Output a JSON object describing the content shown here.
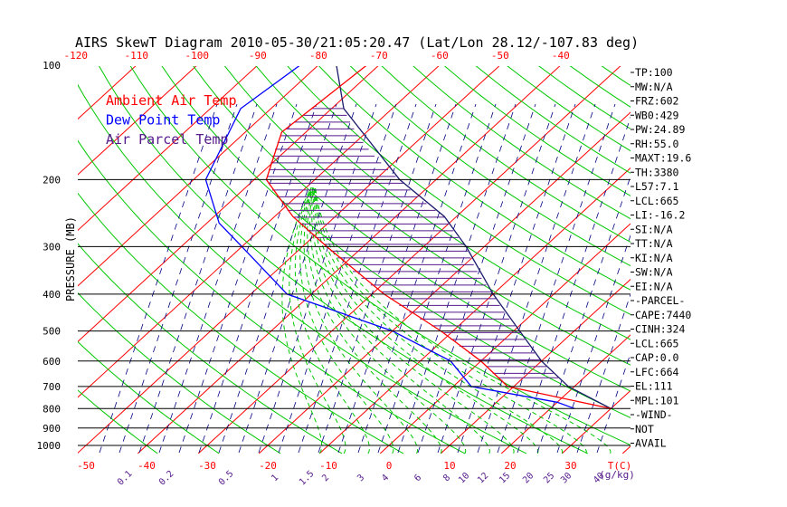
{
  "chart_data": {
    "type": "skewt",
    "title": "AIRS SkewT Diagram 2010-05-30/21:05:20.47 (Lat/Lon 28.12/-107.83 deg)",
    "ylabel": "PRESSURE (MB)",
    "xlabel_bottom": "T(C)",
    "mixing_ratio_unit": "(g/kg)",
    "pressure_ticks": [
      "100",
      "200",
      "300",
      "400",
      "500",
      "600",
      "700",
      "800",
      "900",
      "1000"
    ],
    "pressure_values": [
      100,
      200,
      300,
      400,
      500,
      600,
      700,
      800,
      900,
      1000
    ],
    "top_temp_ticks": [
      -120,
      -110,
      -100,
      -90,
      -80,
      -70,
      -60,
      -50,
      -40
    ],
    "bottom_temp_ticks": [
      -50,
      -40,
      -30,
      -20,
      -10,
      0,
      10,
      20,
      30
    ],
    "mixing_ratio_ticks": [
      "0.1",
      "0.2",
      "0.5",
      "1",
      "1.5",
      "2",
      "3",
      "4",
      "6",
      "8",
      "10",
      "12",
      "15",
      "20",
      "25",
      "30",
      "40"
    ],
    "legend": [
      {
        "name": "Ambient Air Temp",
        "color": "#ff0000"
      },
      {
        "name": "Dew Point Temp",
        "color": "#0000ff"
      },
      {
        "name": "Air Parcel Temp",
        "color": "#551a8b"
      }
    ],
    "colors": {
      "isotherm": "#ff0000",
      "dry_adiabat": "#00c800",
      "moist_adiabat": "#00c800",
      "mixing_ratio": "#000080",
      "parcel": "#1a1a6b",
      "cape_hatch": "#551a8b",
      "pressure_line": "#000000"
    },
    "temperature_profile": [
      {
        "p": 100,
        "t": -72
      },
      {
        "p": 150,
        "t": -74
      },
      {
        "p": 200,
        "t": -68
      },
      {
        "p": 250,
        "t": -57
      },
      {
        "p": 300,
        "t": -46
      },
      {
        "p": 400,
        "t": -28
      },
      {
        "p": 500,
        "t": -12
      },
      {
        "p": 600,
        "t": 0
      },
      {
        "p": 700,
        "t": 9
      },
      {
        "p": 800,
        "t": 30
      }
    ],
    "dewpoint_profile": [
      {
        "p": 100,
        "t": -83
      },
      {
        "p": 130,
        "t": -85
      },
      {
        "p": 200,
        "t": -78
      },
      {
        "p": 260,
        "t": -68
      },
      {
        "p": 300,
        "t": -60
      },
      {
        "p": 400,
        "t": -44
      },
      {
        "p": 500,
        "t": -20
      },
      {
        "p": 600,
        "t": -5
      },
      {
        "p": 700,
        "t": 3
      },
      {
        "p": 770,
        "t": 20
      },
      {
        "p": 800,
        "t": 24
      }
    ],
    "parcel_profile": [
      {
        "p": 100,
        "t": -77
      },
      {
        "p": 130,
        "t": -68
      },
      {
        "p": 200,
        "t": -46
      },
      {
        "p": 250,
        "t": -32
      },
      {
        "p": 300,
        "t": -23
      },
      {
        "p": 400,
        "t": -10
      },
      {
        "p": 500,
        "t": 1
      },
      {
        "p": 600,
        "t": 10
      },
      {
        "p": 700,
        "t": 19
      },
      {
        "p": 800,
        "t": 30
      }
    ],
    "cape_region": {
      "p_top": 130,
      "p_bottom": 664
    }
  },
  "indices": [
    "TP:100",
    "MW:N/A",
    "FRZ:602",
    "WB0:429",
    "PW:24.89",
    "RH:55.0",
    "MAXT:19.6",
    "TH:3380",
    "L57:7.1",
    "LCL:665",
    "LI:-16.2",
    "SI:N/A",
    "TT:N/A",
    "KI:N/A",
    "SW:N/A",
    "EI:N/A",
    "-PARCEL-",
    "CAPE:7440",
    "CINH:324",
    "LCL:665",
    "CAP:0.0",
    "LFC:664",
    "EL:111",
    "MPL:101",
    "-WIND-",
    "NOT",
    "AVAIL"
  ]
}
